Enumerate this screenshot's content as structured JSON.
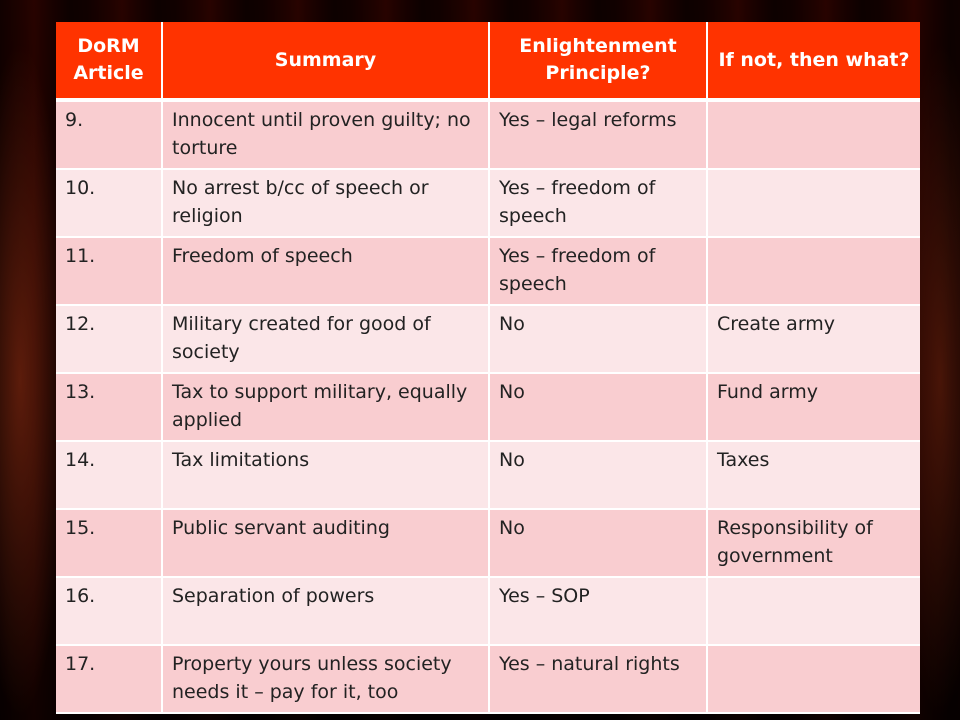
{
  "table": {
    "headers": [
      "DoRM Article",
      "Summary",
      "Enlightenment Principle?",
      "If not, then what?"
    ],
    "rows": [
      [
        "9.",
        "Innocent until proven guilty; no torture",
        "Yes – legal reforms",
        ""
      ],
      [
        "10.",
        "No arrest b/cc of speech or religion",
        "Yes – freedom of speech",
        ""
      ],
      [
        "11.",
        "Freedom of speech",
        "Yes – freedom of speech",
        ""
      ],
      [
        "12.",
        "Military created for good of society",
        "No",
        "Create army"
      ],
      [
        "13.",
        "Tax to support military, equally applied",
        "No",
        "Fund army"
      ],
      [
        "14.",
        "Tax limitations",
        "No",
        "Taxes"
      ],
      [
        "15.",
        "Public servant auditing",
        "No",
        "Responsibility of government"
      ],
      [
        "16.",
        "Separation of powers",
        "Yes – SOP",
        ""
      ],
      [
        "17.",
        "Property yours unless society needs it – pay for it, too",
        "Yes – natural rights",
        ""
      ]
    ]
  },
  "colors": {
    "header_bg": "#ff3300",
    "row_odd": "#f9cdd0",
    "row_even": "#fbe6e8",
    "background": "#4a1208"
  }
}
